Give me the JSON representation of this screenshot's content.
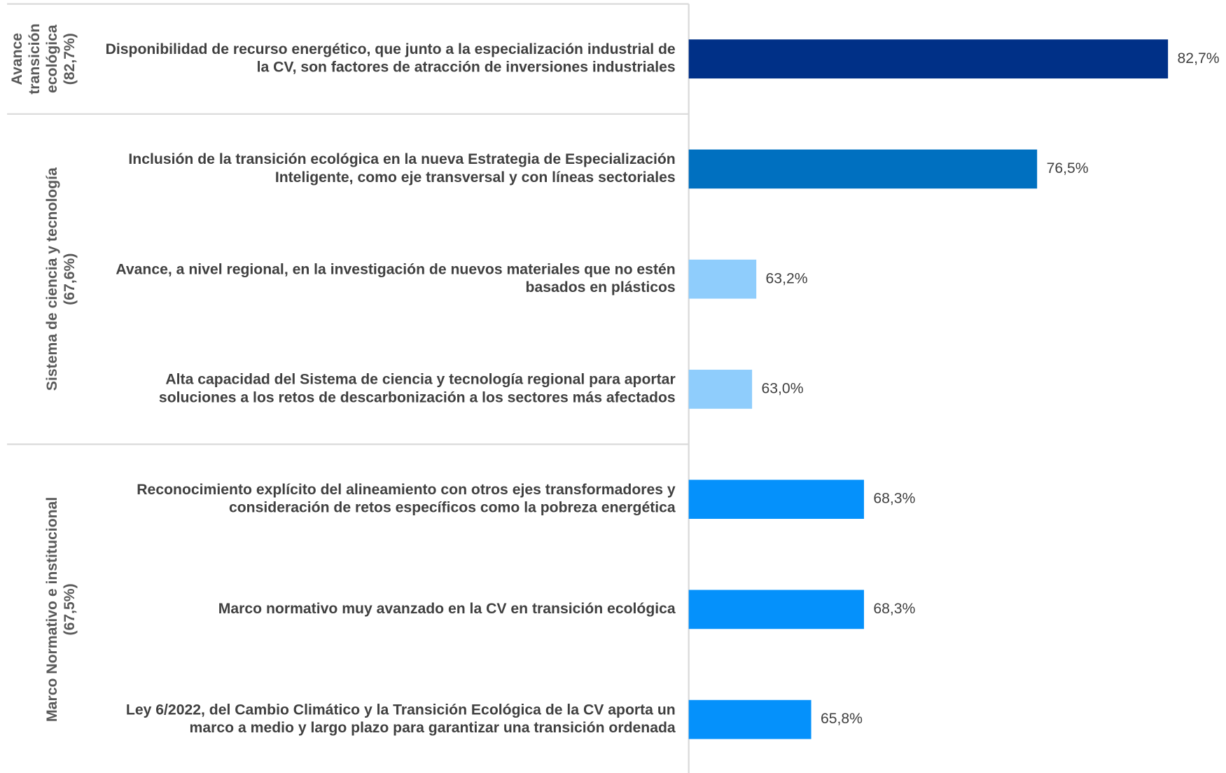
{
  "chart_data": {
    "type": "bar",
    "orientation": "horizontal",
    "xlim": [
      60,
      85
    ],
    "groups": [
      {
        "label_lines": [
          "Avance",
          "transición",
          "ecológica",
          "(82,7%)"
        ],
        "categories": [
          [
            "Disponibilidad de recurso energético, que junto a la especialización industrial de",
            "la CV, son factores de atracción de inversiones industriales"
          ]
        ],
        "values": [
          82.7
        ],
        "value_labels": [
          "82,7%"
        ],
        "colors": [
          "#003087"
        ]
      },
      {
        "label_lines": [
          "Sistema de ciencia y tecnología",
          "(67,6%)"
        ],
        "categories": [
          [
            "Inclusión de la transición ecológica en la nueva Estrategia de Especialización",
            "Inteligente, como eje transversal y con líneas sectoriales"
          ],
          [
            "Avance, a nivel regional, en la investigación de nuevos materiales que no estén",
            "basados en plásticos"
          ],
          [
            "Alta capacidad del Sistema de ciencia y tecnología regional para aportar",
            "soluciones a los retos de descarbonización a los sectores más afectados"
          ]
        ],
        "values": [
          76.5,
          63.2,
          63.0
        ],
        "value_labels": [
          "76,5%",
          "63,2%",
          "63,0%"
        ],
        "colors": [
          "#0070c0",
          "#8fcdfc",
          "#8fcdfc"
        ]
      },
      {
        "label_lines": [
          "Marco Normativo e institucional",
          "(67,5%)"
        ],
        "categories": [
          [
            "Reconocimiento explícito del alineamiento con otros ejes transformadores y",
            "consideración de retos específicos como la pobreza energética"
          ],
          [
            "Marco normativo muy avanzado en la CV en transición ecológica"
          ],
          [
            "Ley 6/2022, del Cambio Climático y la Transición Ecológica de la CV aporta un",
            "marco a medio y largo plazo para garantizar una transición ordenada"
          ]
        ],
        "values": [
          68.3,
          68.3,
          65.8
        ],
        "value_labels": [
          "68,3%",
          "68,3%",
          "65,8%"
        ],
        "colors": [
          "#0591fb",
          "#0591fb",
          "#0591fb"
        ]
      }
    ]
  }
}
